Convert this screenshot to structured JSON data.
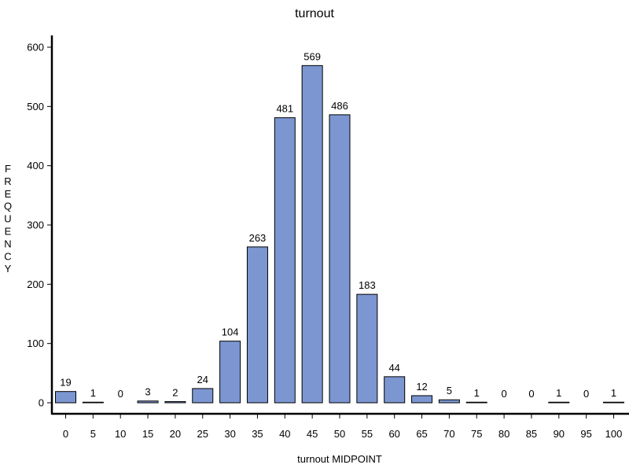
{
  "chart_data": {
    "type": "bar",
    "title": "turnout",
    "xlabel": "turnout  MIDPOINT",
    "ylabel": "FREQUENCY",
    "categories": [
      "0",
      "5",
      "10",
      "15",
      "20",
      "25",
      "30",
      "35",
      "40",
      "45",
      "50",
      "55",
      "60",
      "65",
      "70",
      "75",
      "80",
      "85",
      "90",
      "95",
      "100"
    ],
    "values": [
      19,
      1,
      0,
      3,
      2,
      24,
      104,
      263,
      481,
      569,
      486,
      183,
      44,
      12,
      5,
      1,
      0,
      0,
      1,
      0,
      1
    ],
    "data_labels": [
      "19",
      "1",
      "0",
      "3",
      "2",
      "24",
      "104",
      "263",
      "481",
      "569",
      "486",
      "183",
      "44",
      "12",
      "5",
      "1",
      "0",
      "0",
      "1",
      "0",
      "1"
    ],
    "ylim": [
      0,
      600
    ],
    "yticks": [
      "0",
      "100",
      "200",
      "300",
      "400",
      "500",
      "600"
    ],
    "grid": false,
    "bar_color": "#7b96d0",
    "bar_edge_color": "#000000"
  }
}
